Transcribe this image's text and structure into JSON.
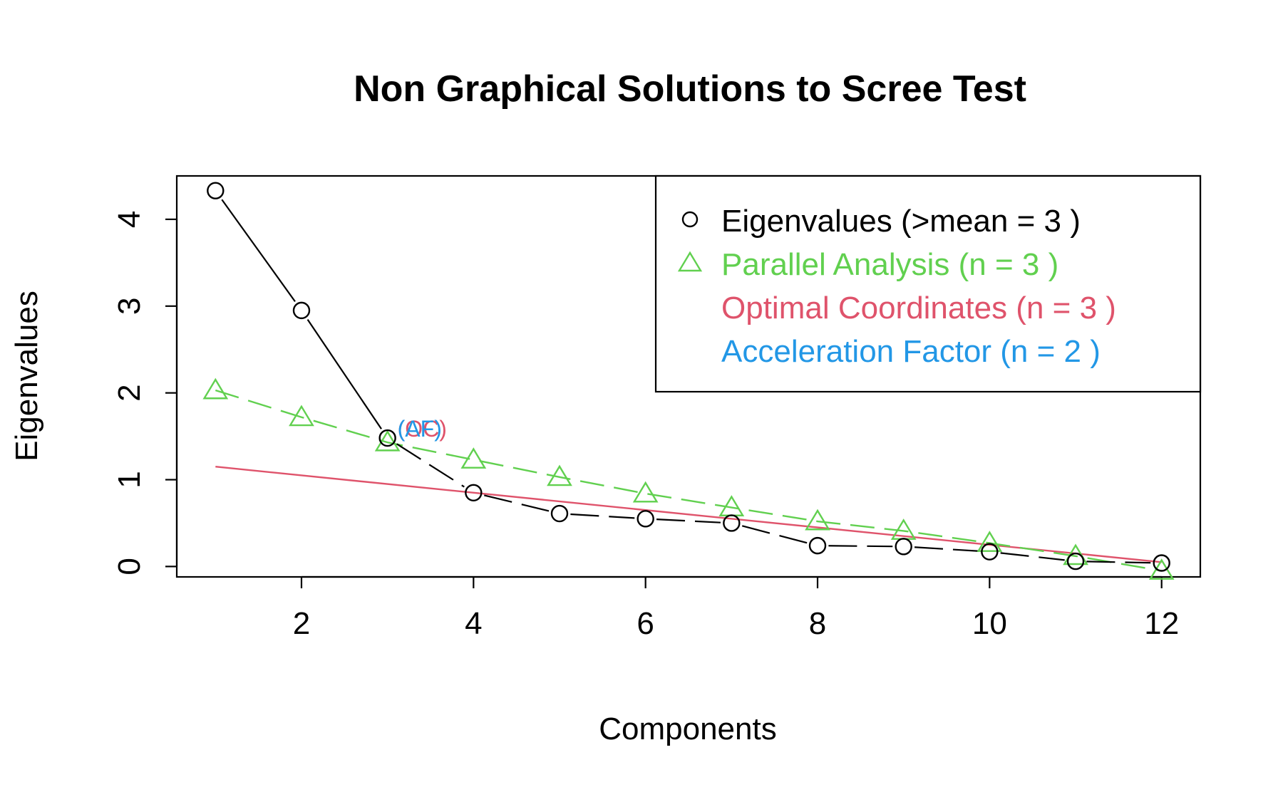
{
  "chart_data": {
    "type": "line",
    "title": "Non Graphical Solutions to Scree Test",
    "xlabel": "Components",
    "ylabel": "Eigenvalues",
    "xlim": [
      0.55,
      12.45
    ],
    "ylim": [
      -0.12,
      4.5
    ],
    "xticks": [
      2,
      4,
      6,
      8,
      10,
      12
    ],
    "yticks": [
      0,
      1,
      2,
      3,
      4
    ],
    "x": [
      1,
      2,
      3,
      4,
      5,
      6,
      7,
      8,
      9,
      10,
      11,
      12
    ],
    "series": [
      {
        "name": "Eigenvalues (>mean  =  3 )",
        "values": [
          4.33,
          2.95,
          1.48,
          0.85,
          0.61,
          0.55,
          0.5,
          0.24,
          0.23,
          0.17,
          0.06,
          0.04
        ],
        "color": "#000000",
        "marker": "circle"
      },
      {
        "name": "Parallel Analysis (n =  3 )",
        "values": [
          2.03,
          1.72,
          1.43,
          1.23,
          1.03,
          0.84,
          0.68,
          0.52,
          0.41,
          0.27,
          0.12,
          -0.05
        ],
        "color": "#61D04F",
        "marker": "triangle"
      },
      {
        "name": "Optimal Coordinates (n =  3 )",
        "x": [
          1,
          12
        ],
        "values": [
          1.15,
          0.05
        ],
        "color": "#DF536B",
        "marker": "none"
      },
      {
        "name": "Acceleration Factor (n =  2 )",
        "color": "#2297E6",
        "marker": "none"
      }
    ],
    "annotations": [
      {
        "text": "(OC)",
        "x": 3,
        "y": 1.48,
        "color": "#DF536B"
      },
      {
        "text": "(AF)",
        "x": 3,
        "y": 1.48,
        "color": "#2297E6"
      }
    ],
    "legend_position": "top-right",
    "grid": false
  }
}
